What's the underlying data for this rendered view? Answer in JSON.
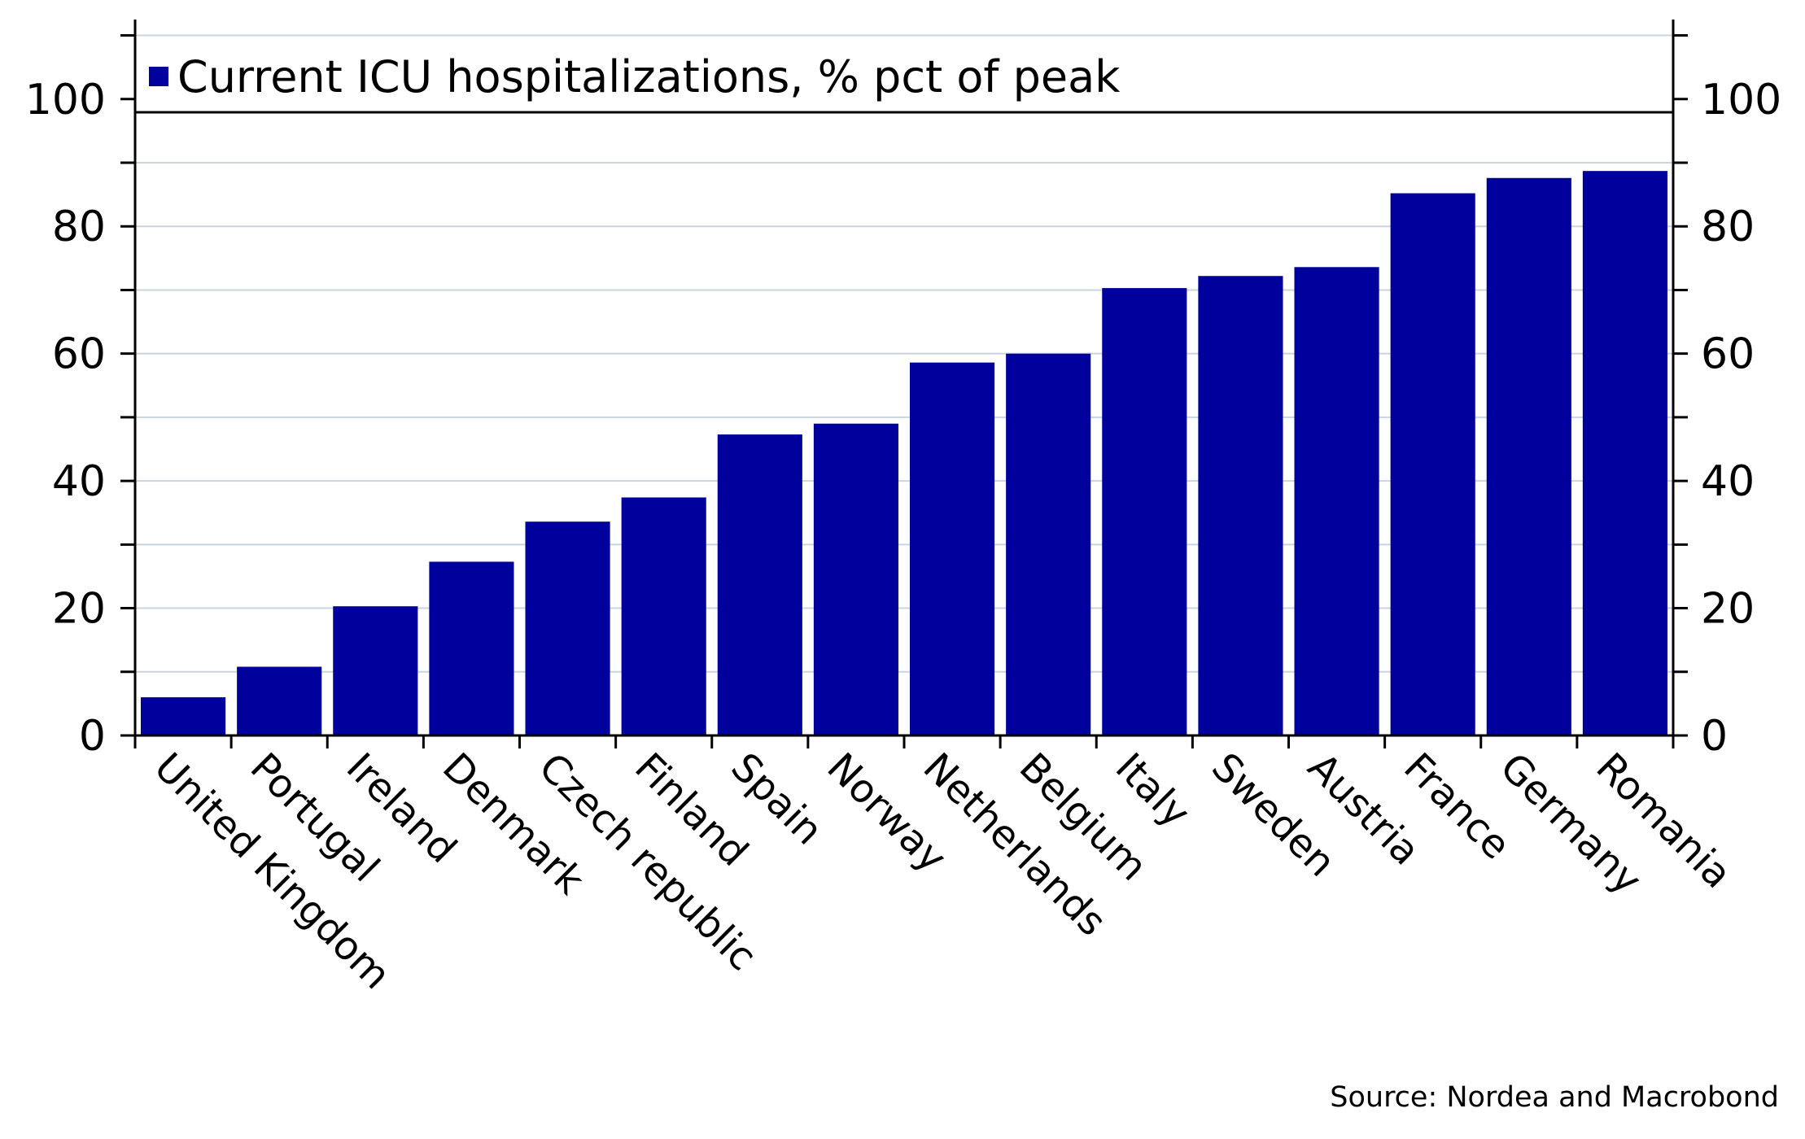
{
  "chart_data": {
    "type": "bar",
    "categories": [
      "United Kingdom",
      "Portugal",
      "Ireland",
      "Denmark",
      "Czech republic",
      "Finland",
      "Spain",
      "Norway",
      "Netherlands",
      "Belgium",
      "Italy",
      "Sweden",
      "Austria",
      "France",
      "Germany",
      "Romania"
    ],
    "series": [
      {
        "name": "Current ICU hospitalizations, % pct of peak",
        "color": "#00009c",
        "values": [
          6,
          10.8,
          20.3,
          27.3,
          33.6,
          37.4,
          47.3,
          49,
          58.6,
          60,
          70.3,
          72.2,
          73.6,
          85.2,
          87.6,
          88.7
        ]
      }
    ],
    "ylim": [
      0,
      112.5
    ],
    "yticks": [
      0,
      20,
      40,
      60,
      80,
      100
    ],
    "yticks_right": [
      0,
      20,
      40,
      60,
      80,
      100
    ],
    "grid": true,
    "legend": "top-left",
    "source": "Source: Nordea and Macrobond"
  }
}
